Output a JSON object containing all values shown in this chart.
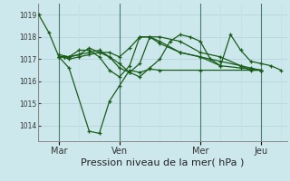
{
  "title": "Pression niveau de la mer( hPa )",
  "background_color": "#cde8ec",
  "grid_color_h": "#b8d8dc",
  "grid_color_v": "#c8e0e4",
  "line_color": "#1a5c1a",
  "ylim": [
    1013.3,
    1019.5
  ],
  "yticks": [
    1014,
    1015,
    1016,
    1017,
    1018,
    1019
  ],
  "xtick_labels": [
    "Mar",
    "Ven",
    "Mer",
    "Jeu"
  ],
  "xtick_positions": [
    1,
    4,
    8,
    11
  ],
  "series": [
    [
      1019.0,
      1018.2,
      1017.1,
      1016.6,
      1013.75,
      1013.65,
      1015.1,
      1015.8,
      1016.5,
      1016.4,
      1016.55,
      1016.5,
      1016.5,
      1016.5
    ],
    [
      1017.1,
      1017.1,
      1017.0,
      1017.1,
      1017.2,
      1017.3,
      1017.3,
      1017.1,
      1017.5,
      1018.0,
      1018.0,
      1017.8,
      1017.3,
      1017.1,
      1016.7,
      1016.6,
      1016.5
    ],
    [
      1017.1,
      1017.1,
      1017.1,
      1017.2,
      1017.3,
      1017.4,
      1017.1,
      1016.6,
      1016.4,
      1016.8,
      1018.0,
      1018.0,
      1017.8,
      1017.3,
      1017.1,
      1016.7,
      1016.6,
      1016.5
    ],
    [
      1017.1,
      1017.1,
      1017.1,
      1017.4,
      1017.4,
      1017.1,
      1016.5,
      1016.2,
      1016.7,
      1018.0,
      1018.0,
      1017.7,
      1017.3,
      1017.1,
      1016.9,
      1016.7,
      1016.5,
      1016.5
    ],
    [
      1017.2,
      1017.1,
      1017.2,
      1017.5,
      1017.3,
      1017.1,
      1016.8,
      1016.4,
      1016.2,
      1016.6,
      1017.0,
      1017.8,
      1018.1,
      1018.0,
      1017.8,
      1017.0,
      1016.7,
      1018.1,
      1017.4,
      1016.9,
      1016.8,
      1016.7,
      1016.5
    ]
  ],
  "x_positions": [
    [
      0,
      0.5,
      1.0,
      1.5,
      2.5,
      3.0,
      3.5,
      4.0,
      4.5,
      5.0,
      5.5,
      6.0,
      8.0,
      11.0
    ],
    [
      1.0,
      1.25,
      1.5,
      2.0,
      2.5,
      3.0,
      3.5,
      4.0,
      4.5,
      5.0,
      5.5,
      6.0,
      7.0,
      8.0,
      9.0,
      10.0,
      11.0
    ],
    [
      1.0,
      1.25,
      1.5,
      2.0,
      2.5,
      3.0,
      3.5,
      4.0,
      4.5,
      5.0,
      5.5,
      6.0,
      7.0,
      8.0,
      9.0,
      10.0,
      10.5,
      11.0
    ],
    [
      1.0,
      1.25,
      1.5,
      2.0,
      2.5,
      3.0,
      3.5,
      4.0,
      4.5,
      5.0,
      5.5,
      6.0,
      7.0,
      8.0,
      9.0,
      10.0,
      10.5,
      11.0
    ],
    [
      1.0,
      1.5,
      2.0,
      2.5,
      3.0,
      3.5,
      4.0,
      4.5,
      5.0,
      5.5,
      6.0,
      6.5,
      7.0,
      7.5,
      8.0,
      8.5,
      9.0,
      9.5,
      10.0,
      10.5,
      11.0,
      11.5,
      12.0
    ]
  ],
  "xlim": [
    -0.05,
    12.3
  ],
  "vline_positions": [
    1.0,
    4.0,
    8.0,
    11.0
  ],
  "n_vgrid": 13,
  "ylabel_fontsize": 5.5,
  "xlabel_fontsize": 8,
  "xtick_fontsize": 7
}
